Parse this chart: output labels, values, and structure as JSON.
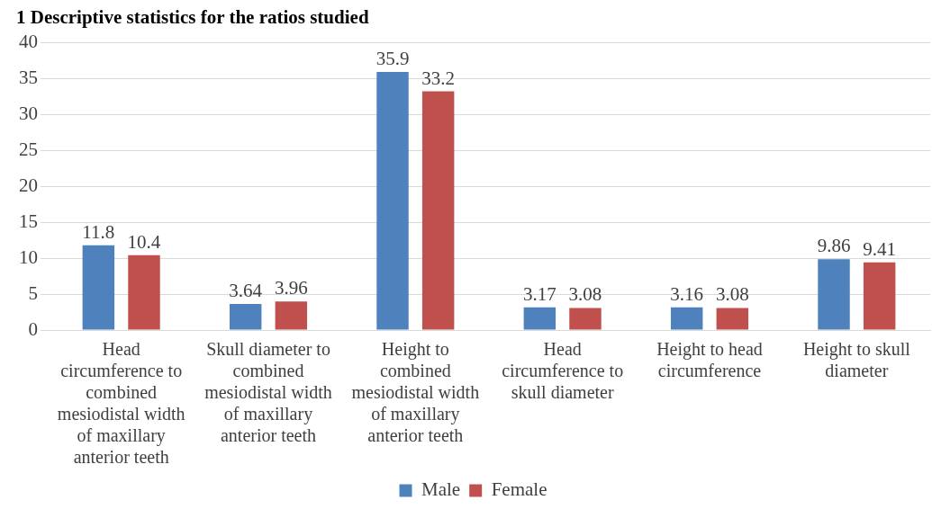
{
  "chart_data": {
    "type": "bar",
    "title": "1 Descriptive statistics for the ratios studied",
    "categories": [
      "Head circumference to combined mesiodistal width of maxillary anterior teeth",
      "Skull diameter to combined mesiodistal width of maxillary anterior teeth",
      "Height to combined mesiodistal width of maxillary anterior teeth",
      "Head circumference to skull diameter",
      "Height to head circumference",
      "Height to skull diameter"
    ],
    "series": [
      {
        "name": "Male",
        "color": "#4f81bd",
        "values": [
          11.8,
          3.64,
          35.9,
          3.17,
          3.16,
          9.86
        ]
      },
      {
        "name": "Female",
        "color": "#c0504d",
        "values": [
          10.4,
          3.96,
          33.2,
          3.08,
          3.08,
          9.41
        ]
      }
    ],
    "ylim": [
      0,
      40
    ],
    "yticks": [
      0,
      5,
      10,
      15,
      20,
      25,
      30,
      35,
      40
    ],
    "grid": "y",
    "legend": "bottom",
    "data_labels": true
  }
}
